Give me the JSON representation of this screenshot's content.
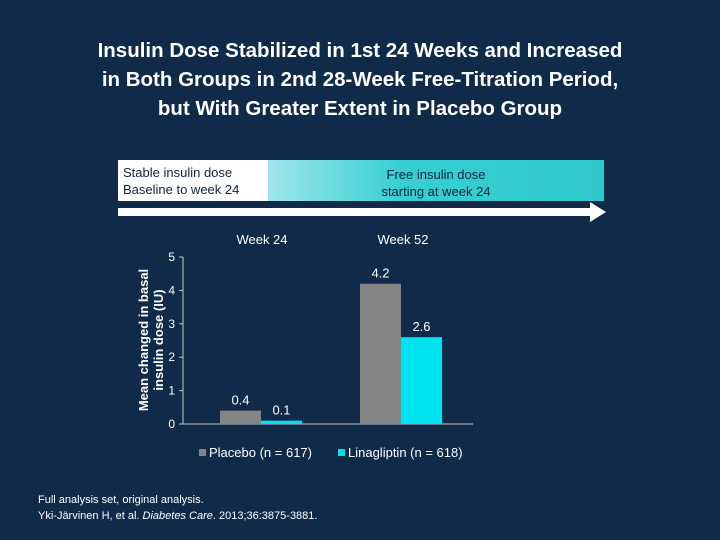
{
  "title": {
    "line1": "Insulin Dose Stabilized in 1st 24 Weeks and Increased",
    "line2": "in Both Groups in 2nd 28-Week Free-Titration Period,",
    "line3": "but With Greater Extent in Placebo Group"
  },
  "phases": {
    "stable": {
      "line1": "Stable insulin dose",
      "line2": "Baseline to week 24"
    },
    "free": {
      "line1": "Free insulin dose",
      "line2": "starting at week 24"
    }
  },
  "footnote": {
    "line1": "Full analysis set, original analysis.",
    "citation_authors": "Yki-Järvinen H, et al. ",
    "citation_journal": "Diabetes Care",
    "citation_rest": ". 2013;36:3875-3881."
  },
  "colors": {
    "placebo": "#848484",
    "linagliptin": "#00e2f0"
  },
  "chart_data": {
    "type": "bar",
    "categories": [
      "Week 24",
      "Week 52"
    ],
    "series": [
      {
        "name": "Placebo (n = 617)",
        "values": [
          0.4,
          4.2
        ],
        "labels": [
          "0.4",
          "4.2"
        ]
      },
      {
        "name": "Linagliptin (n = 618)",
        "values": [
          0.1,
          2.6
        ],
        "labels": [
          "0.1",
          "2.6"
        ]
      }
    ],
    "ylabel_line1": "Mean changed in basal",
    "ylabel_line2": "insulin dose (IU)",
    "ylim": [
      0,
      5
    ],
    "yticks": [
      "0",
      "1",
      "2",
      "3",
      "4",
      "5"
    ],
    "legend": "bottom"
  }
}
